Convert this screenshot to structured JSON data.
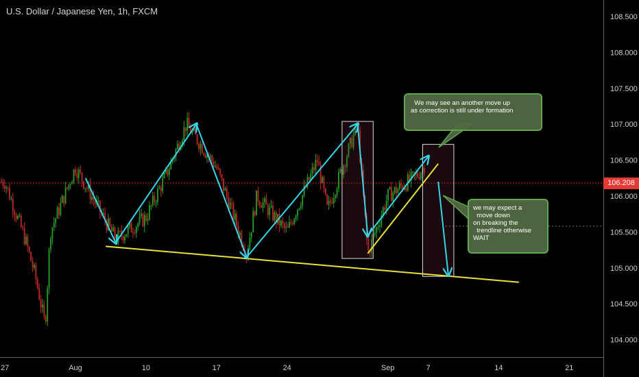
{
  "header": {
    "symbol_title": "U.S. Dollar / Japanese Yen, 1h, FXCM"
  },
  "price_tag": {
    "value": "106.208",
    "color": "#e53935"
  },
  "annotations": {
    "note_up": "  We may see an another move up\nas correction is still under formation",
    "note_down": "we may expect a\n  move down\non breaking the\n  trendline otherwise\nWAIT"
  },
  "colors": {
    "arrows": "#35d6ea",
    "trendlines": "#e8e23a",
    "up_candle": "#26a126",
    "down_candle": "#c62828"
  },
  "chart_data": {
    "type": "candlestick",
    "title": "U.S. Dollar / Japanese Yen, 1h, FXCM",
    "y_axis": {
      "range": [
        103.85,
        108.8
      ],
      "ticks": [
        "108.500",
        "108.000",
        "107.500",
        "107.000",
        "106.500",
        "106.000",
        "105.500",
        "105.000",
        "104.500",
        "104.000"
      ],
      "side": "right"
    },
    "x_axis": {
      "ticks": [
        "27",
        "Aug",
        "10",
        "17",
        "24",
        "Sep",
        "7",
        "14",
        "21"
      ]
    },
    "current_price": 106.208,
    "price_path": [
      [
        "Jul 27",
        106.2
      ],
      [
        "Jul 29",
        105.4
      ],
      [
        "Jul 30",
        104.9
      ],
      [
        "Jul 31",
        104.2
      ],
      [
        "Jul 31 late",
        105.5
      ],
      [
        "Aug 3",
        106.4
      ],
      [
        "Aug 7",
        105.4
      ],
      [
        "Aug 10",
        105.7
      ],
      [
        "Aug 12",
        106.3
      ],
      [
        "Aug 14",
        107.0
      ],
      [
        "Aug 17",
        106.4
      ],
      [
        "Aug 20",
        105.2
      ],
      [
        "Aug 21",
        106.0
      ],
      [
        "Aug 24",
        105.5
      ],
      [
        "Aug 27",
        106.5
      ],
      [
        "Aug 28",
        105.8
      ],
      [
        "Aug 31",
        107.0
      ],
      [
        "Sep 1",
        105.2
      ],
      [
        "Sep 3",
        106.0
      ],
      [
        "Sep 6",
        106.3
      ],
      [
        "Sep 7",
        106.5
      ]
    ],
    "drawings": {
      "arrows": [
        [
          [
            "Aug 4",
            106.25
          ],
          [
            "Aug 7",
            105.35
          ]
        ],
        [
          [
            "Aug 7",
            105.35
          ],
          [
            "Aug 15",
            107.0
          ]
        ],
        [
          [
            "Aug 15",
            107.0
          ],
          [
            "Aug 20",
            105.15
          ]
        ],
        [
          [
            "Aug 20",
            105.15
          ],
          [
            "Aug 31",
            107.0
          ]
        ],
        [
          [
            "Aug 31",
            107.0
          ],
          [
            "Sep 1",
            105.45
          ]
        ],
        [
          [
            "Sep 1",
            105.45
          ],
          [
            "Sep 7",
            106.55
          ]
        ],
        [
          [
            "Sep 8",
            106.2
          ],
          [
            "Sep 9",
            104.9
          ]
        ]
      ],
      "trendlines": [
        [
          [
            "Aug 6",
            105.3
          ],
          [
            "Sep 16",
            104.8
          ]
        ],
        [
          [
            "Sep 1",
            105.2
          ],
          [
            "Sep 8",
            106.45
          ]
        ]
      ],
      "boxes": [
        {
          "from": "Aug 30",
          "to": "Sep 1",
          "range": [
            105.15,
            107.02
          ]
        },
        {
          "from": "Sep 7",
          "to": "Sep 9",
          "range": [
            104.9,
            106.7
          ]
        }
      ]
    }
  }
}
